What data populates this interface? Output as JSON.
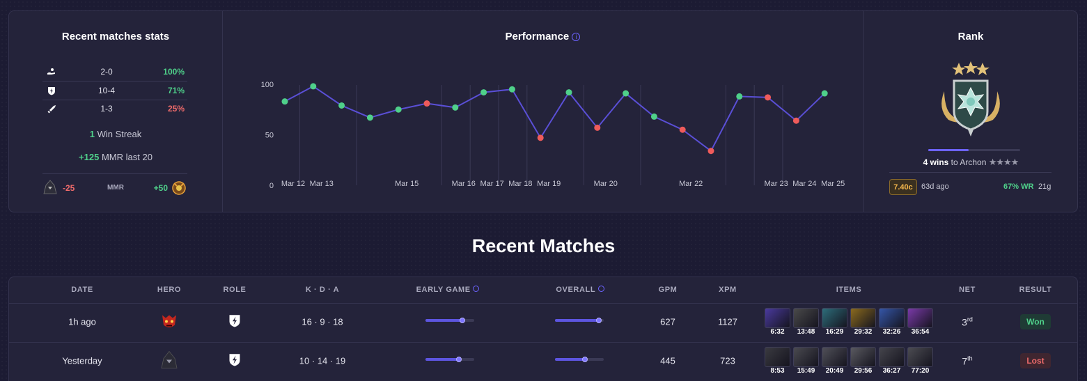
{
  "stats": {
    "title": "Recent matches stats",
    "rows": [
      {
        "icon": "support-icon",
        "record": "2-0",
        "pct": "100%",
        "color": "#4fd08a"
      },
      {
        "icon": "bolt-shield-icon",
        "record": "10-4",
        "pct": "71%",
        "color": "#4fd08a"
      },
      {
        "icon": "sword-icon",
        "record": "1-3",
        "pct": "25%",
        "color": "#ef6b6b"
      }
    ],
    "streak_value": "1",
    "streak_label": "Win Streak",
    "mmr_change": "+125",
    "mmr_label": "MMR last 20",
    "mmr_low": "-25",
    "mmr_mid": "MMR",
    "mmr_high": "+50"
  },
  "performance": {
    "title": "Performance",
    "info_icon": "info-icon"
  },
  "chart_data": {
    "type": "line",
    "title": "Performance",
    "ylim": [
      0,
      100
    ],
    "yticks": [
      0,
      50,
      100
    ],
    "grid": true,
    "x_date_labels": [
      "Mar 12",
      "Mar 13",
      "Mar 15",
      "Mar 16",
      "Mar 17",
      "Mar 18",
      "Mar 19",
      "Mar 20",
      "Mar 22",
      "Mar 23",
      "Mar 24",
      "Mar 25"
    ],
    "series": [
      {
        "values": [
          83,
          98,
          79,
          67,
          75,
          81,
          77,
          92,
          95,
          47,
          92,
          57,
          91,
          68,
          55,
          34,
          88,
          87,
          64,
          91
        ],
        "results": [
          "win",
          "win",
          "win",
          "win",
          "win",
          "loss",
          "win",
          "win",
          "win",
          "loss",
          "win",
          "loss",
          "win",
          "win",
          "loss",
          "loss",
          "win",
          "loss",
          "loss",
          "win"
        ],
        "line_color": "#5a4fd6"
      }
    ],
    "colors": {
      "win": "#4fd08a",
      "loss": "#ef5b5b"
    }
  },
  "rank": {
    "title": "Rank",
    "wins": "4 wins",
    "to_label": "to Archon",
    "progress": 0.44,
    "patch": "7.40c",
    "patch_ago": "63d ago",
    "wr": "67% WR",
    "games": "21g"
  },
  "recent": {
    "heading": "Recent Matches",
    "columns": [
      "DATE",
      "HERO",
      "ROLE",
      "K · D · A",
      "EARLY GAME",
      "OVERALL",
      "GPM",
      "XPM",
      "ITEMS",
      "NET",
      "RESULT"
    ],
    "rows": [
      {
        "date": "1h ago",
        "hero_icon": "hero-red-demon-icon",
        "role_icon": "bolt-shield-icon",
        "kda": "16 · 9 · 18",
        "early": 0.75,
        "overall": 0.9,
        "gpm": "627",
        "xpm": "1127",
        "items": [
          {
            "time": "6:32",
            "color": "#4a3a9e"
          },
          {
            "time": "13:48",
            "color": "#4a4a4a"
          },
          {
            "time": "16:29",
            "color": "#2d6d7a"
          },
          {
            "time": "29:32",
            "color": "#8a6a1e"
          },
          {
            "time": "32:26",
            "color": "#3556a8"
          },
          {
            "time": "36:54",
            "color": "#7a3aa8"
          }
        ],
        "net": "3",
        "net_suffix": "rd",
        "result": "Won"
      },
      {
        "date": "Yesterday",
        "hero_icon": "hero-dark-hood-icon",
        "role_icon": "bolt-shield-icon",
        "kda": "10 · 14 · 19",
        "early": 0.68,
        "overall": 0.62,
        "gpm": "445",
        "xpm": "723",
        "items": [
          {
            "time": "8:53",
            "color": "#3a3a40"
          },
          {
            "time": "15:49",
            "color": "#4a4a50"
          },
          {
            "time": "20:49",
            "color": "#505058"
          },
          {
            "time": "29:56",
            "color": "#5a5a60"
          },
          {
            "time": "36:27",
            "color": "#45454c"
          },
          {
            "time": "77:20",
            "color": "#4c4c52"
          }
        ],
        "net": "7",
        "net_suffix": "th",
        "result": "Lost"
      }
    ]
  }
}
